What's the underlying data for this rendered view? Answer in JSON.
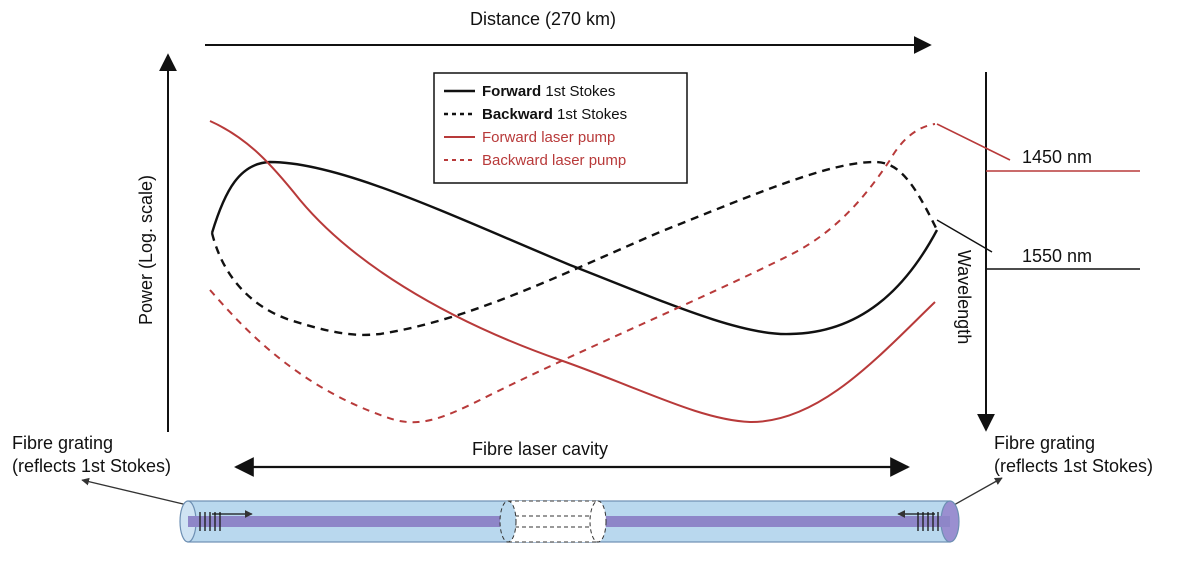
{
  "diagram": {
    "distance_label": "Distance (270 km)",
    "power_label": "Power (Log. scale)",
    "wavelength_label": "Wavelength",
    "wavelength_1": "1450 nm",
    "wavelength_2": "1550 nm",
    "cavity_label": "Fibre laser cavity",
    "grating_left_line1": "Fibre grating",
    "grating_left_line2": "(reflects 1st Stokes)",
    "grating_right_line1": "Fibre grating",
    "grating_right_line2": "(reflects 1st Stokes)"
  },
  "legend": [
    {
      "dir": "Forward",
      "what": "1st Stokes"
    },
    {
      "dir": "Backward",
      "what": "1st Stokes"
    },
    {
      "dir": "Forward",
      "what": "laser pump"
    },
    {
      "dir": "Backward",
      "what": "laser pump"
    }
  ],
  "colors": {
    "stokes": "#111111",
    "pump": "#b83a3a",
    "fibre_fill": "#b9d8ee",
    "fibre_core": "#8e86c8",
    "fibre_edge": "#6d8fb3"
  }
}
